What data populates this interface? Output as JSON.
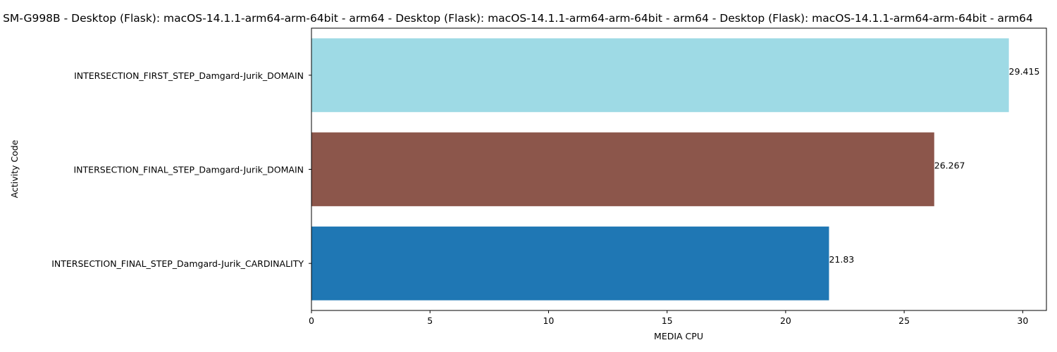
{
  "chart_data": {
    "type": "bar",
    "orientation": "horizontal",
    "title": "SM-G998B - Desktop (Flask): macOS-14.1.1-arm64-arm-64bit - arm64 - Desktop (Flask): macOS-14.1.1-arm64-arm-64bit - arm64 - Desktop (Flask): macOS-14.1.1-arm64-arm-64bit - arm64",
    "xlabel": "MEDIA CPU",
    "ylabel": "Activity Code",
    "xlim": [
      0,
      31
    ],
    "xticks": [
      0,
      5,
      10,
      15,
      20,
      25,
      30
    ],
    "categories": [
      "INTERSECTION_FIRST_STEP_Damgard-Jurik_DOMAIN",
      "INTERSECTION_FINAL_STEP_Damgard-Jurik_DOMAIN",
      "INTERSECTION_FINAL_STEP_Damgard-Jurik_CARDINALITY"
    ],
    "values": [
      29.415,
      26.267,
      21.83
    ],
    "value_labels": [
      "29.415",
      "26.267",
      "21.83"
    ],
    "colors": [
      "#9edae5",
      "#8c564b",
      "#1f77b4"
    ],
    "grid": false,
    "legend": "none"
  }
}
